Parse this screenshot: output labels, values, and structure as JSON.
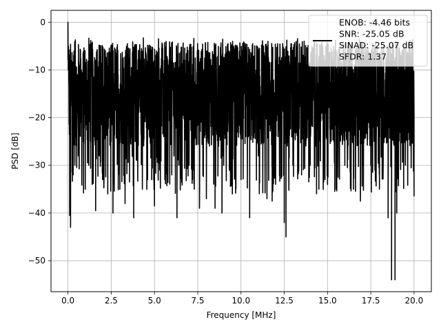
{
  "chart_data": {
    "type": "line",
    "title": "",
    "xlabel": "Frequency [MHz]",
    "ylabel": "PSD [dB]",
    "xlim": [
      -0.98,
      21.0
    ],
    "ylim": [
      -56.5,
      2.5
    ],
    "xticks": [
      0.0,
      2.5,
      5.0,
      7.5,
      10.0,
      12.5,
      15.0,
      17.5,
      20.0
    ],
    "xtick_labels": [
      "0.0",
      "2.5",
      "5.0",
      "7.5",
      "10.0",
      "12.5",
      "15.0",
      "17.5",
      "20.0"
    ],
    "yticks": [
      0,
      -10,
      -20,
      -30,
      -40,
      -50
    ],
    "ytick_labels": [
      "0",
      "−10",
      "−20",
      "−30",
      "−40",
      "−50"
    ],
    "grid": true,
    "legend": {
      "placement": "upper right",
      "lines": [
        "ENOB: -4.46 bits",
        "SNR: -25.05 dB",
        "SINAD: -25.07 dB",
        "SFDR: 1.37"
      ]
    },
    "series": [
      {
        "color": "#000000",
        "description_peaks": "dense noise, mean around -15 dB, envelope roughly -3 to -30 dB",
        "x": [
          0.0,
          0.02,
          0.05,
          0.1,
          0.15,
          0.2,
          0.25,
          0.3,
          0.4,
          0.5,
          0.6,
          0.8,
          1.0,
          1.2,
          1.4,
          1.6,
          1.8,
          2.0,
          2.3,
          2.5,
          2.6,
          3.0,
          3.3,
          3.6,
          3.8,
          4.0,
          4.3,
          4.6,
          5.0,
          5.3,
          5.6,
          6.0,
          6.3,
          6.6,
          7.0,
          7.3,
          7.6,
          8.0,
          8.5,
          8.9,
          9.0,
          9.5,
          10.0,
          10.5,
          11.0,
          11.5,
          11.8,
          12.0,
          12.5,
          12.6,
          13.0,
          13.5,
          14.0,
          14.5,
          15.0,
          15.5,
          16.0,
          16.5,
          16.9,
          17.0,
          17.5,
          18.0,
          18.5,
          18.7,
          18.9,
          19.0,
          19.5,
          20.0
        ],
        "y": [
          0.0,
          -10.0,
          -12.0,
          -40.5,
          -43.0,
          -12.0,
          -25.0,
          -32.0,
          -30.0,
          -20.0,
          -28.0,
          -33.0,
          -35.0,
          -30.0,
          -34.0,
          -39.5,
          -28.0,
          -33.0,
          -36.0,
          -25.0,
          -40.0,
          -35.0,
          -38.0,
          -25.0,
          -41.0,
          -29.0,
          -35.0,
          -33.0,
          -38.5,
          -31.0,
          -33.0,
          -32.0,
          -41.0,
          -30.0,
          -30.0,
          -35.0,
          -39.0,
          -37.0,
          -39.0,
          -40.0,
          -30.0,
          -36.0,
          -33.0,
          -41.0,
          -28.0,
          -37.0,
          -37.5,
          -34.0,
          -42.0,
          -45.0,
          -30.0,
          -32.0,
          -30.0,
          -35.0,
          -34.0,
          -35.0,
          -30.0,
          -35.0,
          -37.5,
          -32.0,
          -30.0,
          -35.0,
          -41.0,
          -54.0,
          -54.0,
          -40.0,
          -30.0,
          -36.5
        ]
      }
    ]
  }
}
